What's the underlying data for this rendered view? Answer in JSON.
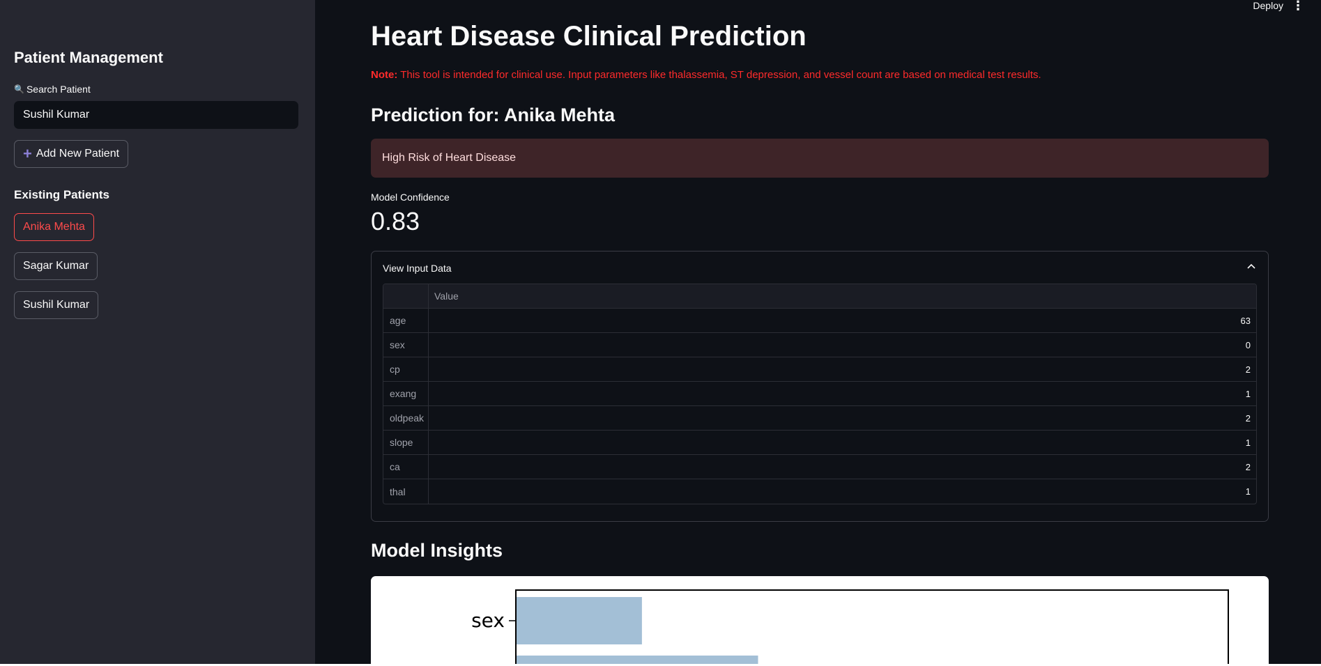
{
  "sidebar": {
    "title": "Patient Management",
    "search_label": "Search Patient",
    "search_value": "Sushil Kumar",
    "add_button": "Add New Patient",
    "existing_title": "Existing Patients",
    "patients": [
      "Anika Mehta",
      "Sagar Kumar",
      "Sushil Kumar"
    ]
  },
  "header": {
    "deploy": "Deploy"
  },
  "main": {
    "title": "Heart Disease Clinical Prediction",
    "note_label": "Note:",
    "note_text": " This tool is intended for clinical use. Input parameters like thalassemia, ST depression, and vessel count are based on medical test results.",
    "prediction_title": "Prediction for: Anika Mehta",
    "alert_text": "High Risk of Heart Disease",
    "metric_label": "Model Confidence",
    "metric_value": "0.83",
    "expander_label": "View Input Data",
    "table_header": "Value",
    "table_rows": [
      {
        "key": "age",
        "value": "63"
      },
      {
        "key": "sex",
        "value": "0"
      },
      {
        "key": "cp",
        "value": "2"
      },
      {
        "key": "exang",
        "value": "1"
      },
      {
        "key": "oldpeak",
        "value": "2"
      },
      {
        "key": "slope",
        "value": "1"
      },
      {
        "key": "ca",
        "value": "2"
      },
      {
        "key": "thal",
        "value": "1"
      }
    ],
    "insights_title": "Model Insights"
  },
  "chart_data": {
    "type": "bar",
    "orientation": "horizontal",
    "categories": [
      "sex"
    ],
    "values": [
      0.176
    ],
    "partial_bar_value": 0.339,
    "bar_color": "#a3bfd6",
    "xlim": [
      0,
      1
    ]
  },
  "colors": {
    "accent": "#ff4b4b",
    "sidebar_bg": "#262730",
    "main_bg": "#0e1117",
    "alert_bg": "#3e2428"
  }
}
